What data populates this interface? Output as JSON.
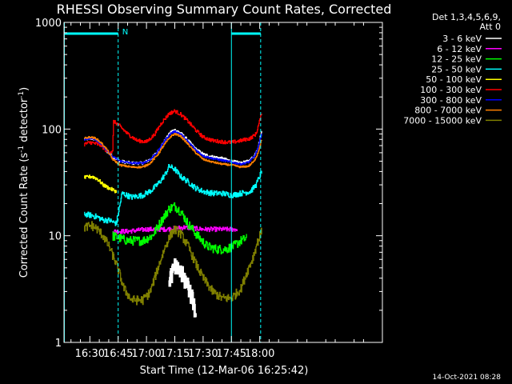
{
  "chart_data": {
    "type": "line",
    "title": "RHESSI Observing Summary Count Rates, Corrected",
    "xlabel": "Start Time (12-Mar-06 16:25:42)",
    "ylabel": "Corrected Count Rate (s",
    "ylabel_sup1": "-1",
    "ylabel_mid": " detector",
    "ylabel_sup2": "-1",
    "ylabel_end": ")",
    "y_scale": "log",
    "ylim": [
      1,
      1000
    ],
    "xlim_minutes": [
      16.3,
      185.0
    ],
    "x_ticks": [
      {
        "label": "16:30",
        "minute": 30
      },
      {
        "label": "16:45",
        "minute": 45
      },
      {
        "label": "17:00",
        "minute": 60
      },
      {
        "label": "17:15",
        "minute": 75
      },
      {
        "label": "17:30",
        "minute": 90
      },
      {
        "label": "17:45",
        "minute": 105
      },
      {
        "label": "18:00",
        "minute": 120
      }
    ],
    "y_ticks": [
      {
        "label": "1",
        "value": 1
      },
      {
        "label": "10",
        "value": 10
      },
      {
        "label": "100",
        "value": 100
      },
      {
        "label": "1000",
        "value": 1000
      }
    ],
    "legend_header": [
      "Det 1,3,4,5,6,9,",
      "Att 0"
    ],
    "legend_placement": "right",
    "series": [
      {
        "name": "3 - 6 keV",
        "color": "#ffffff",
        "noise": 0.03,
        "points": [
          [
            27,
            80
          ],
          [
            30,
            82
          ],
          [
            33,
            80
          ],
          [
            36,
            72
          ],
          [
            39,
            62
          ],
          [
            42,
            55
          ],
          [
            46,
            50
          ],
          [
            52,
            48
          ],
          [
            58,
            48
          ],
          [
            62,
            52
          ],
          [
            66,
            62
          ],
          [
            70,
            80
          ],
          [
            73,
            95
          ],
          [
            75,
            98
          ],
          [
            78,
            92
          ],
          [
            82,
            78
          ],
          [
            86,
            65
          ],
          [
            90,
            58
          ],
          [
            95,
            55
          ],
          [
            100,
            53
          ],
          [
            105,
            50
          ],
          [
            110,
            48
          ],
          [
            114,
            50
          ],
          [
            117,
            56
          ],
          [
            119,
            68
          ],
          [
            121,
            95
          ]
        ]
      },
      {
        "name": "6 - 12 keV",
        "color": "#ff00ff",
        "noise": 0.05,
        "points": [
          [
            42,
            11
          ],
          [
            50,
            11
          ],
          [
            60,
            11.5
          ],
          [
            70,
            11.5
          ],
          [
            80,
            12
          ],
          [
            90,
            11.5
          ],
          [
            100,
            11.5
          ],
          [
            108,
            11.5
          ]
        ]
      },
      {
        "name": "12 - 25 keV",
        "color": "#00ff00",
        "noise": 0.1,
        "points": [
          [
            42,
            10
          ],
          [
            50,
            9
          ],
          [
            58,
            9
          ],
          [
            63,
            10
          ],
          [
            68,
            14
          ],
          [
            72,
            18
          ],
          [
            75,
            19
          ],
          [
            78,
            17
          ],
          [
            82,
            13
          ],
          [
            87,
            10
          ],
          [
            92,
            8
          ],
          [
            97,
            7.5
          ],
          [
            102,
            7.5
          ],
          [
            106,
            8
          ],
          [
            110,
            9
          ],
          [
            113,
            9.5
          ]
        ]
      },
      {
        "name": "25 - 50 keV",
        "color": "#00ffff",
        "noise": 0.06,
        "points": [
          [
            27,
            16
          ],
          [
            31,
            15.5
          ],
          [
            34,
            15
          ],
          [
            37,
            14
          ],
          [
            40,
            14
          ],
          [
            44,
            13
          ],
          [
            47,
            25
          ],
          [
            52,
            23
          ],
          [
            58,
            24
          ],
          [
            63,
            27
          ],
          [
            67,
            32
          ],
          [
            70,
            38
          ],
          [
            72,
            45
          ],
          [
            75,
            42
          ],
          [
            78,
            36
          ],
          [
            82,
            32
          ],
          [
            86,
            28
          ],
          [
            90,
            26
          ],
          [
            95,
            25
          ],
          [
            100,
            25
          ],
          [
            105,
            24
          ],
          [
            110,
            25
          ],
          [
            115,
            26
          ],
          [
            118,
            30
          ],
          [
            121,
            40
          ]
        ]
      },
      {
        "name": "50 - 100 keV",
        "color": "#ffff00",
        "noise": 0.04,
        "points": [
          [
            27,
            35
          ],
          [
            31,
            36
          ],
          [
            34,
            34
          ],
          [
            37,
            30
          ],
          [
            40,
            28
          ],
          [
            44,
            26
          ]
        ]
      },
      {
        "name": "100 - 300 keV",
        "color": "#ff0000",
        "noise": 0.04,
        "points": [
          [
            27,
            72
          ],
          [
            30,
            75
          ],
          [
            33,
            73
          ],
          [
            36,
            70
          ],
          [
            39,
            62
          ],
          [
            42,
            61
          ],
          [
            42.5,
            118
          ],
          [
            45,
            110
          ],
          [
            50,
            90
          ],
          [
            55,
            78
          ],
          [
            60,
            76
          ],
          [
            64,
            88
          ],
          [
            68,
            115
          ],
          [
            72,
            140
          ],
          [
            75,
            148
          ],
          [
            78,
            138
          ],
          [
            82,
            118
          ],
          [
            86,
            98
          ],
          [
            90,
            84
          ],
          [
            95,
            78
          ],
          [
            100,
            76
          ],
          [
            105,
            75
          ],
          [
            110,
            78
          ],
          [
            115,
            82
          ],
          [
            118,
            90
          ],
          [
            121,
            140
          ]
        ]
      },
      {
        "name": "300 - 800 keV",
        "color": "#0000ff",
        "noise": 0.02,
        "points": [
          [
            27,
            80
          ],
          [
            30,
            82
          ],
          [
            33,
            80
          ],
          [
            36,
            72
          ],
          [
            39,
            62
          ],
          [
            42,
            55
          ],
          [
            46,
            50
          ],
          [
            52,
            48
          ],
          [
            58,
            48
          ],
          [
            62,
            52
          ],
          [
            66,
            62
          ],
          [
            70,
            80
          ],
          [
            73,
            92
          ],
          [
            75,
            95
          ],
          [
            78,
            90
          ],
          [
            82,
            76
          ],
          [
            86,
            64
          ],
          [
            90,
            56
          ],
          [
            95,
            53
          ],
          [
            100,
            51
          ],
          [
            105,
            49
          ],
          [
            110,
            47
          ],
          [
            114,
            49
          ],
          [
            117,
            55
          ],
          [
            119,
            66
          ],
          [
            121,
            92
          ]
        ]
      },
      {
        "name": "800 - 7000 keV",
        "color": "#ff8000",
        "noise": 0.02,
        "points": [
          [
            27,
            82
          ],
          [
            30,
            84
          ],
          [
            33,
            82
          ],
          [
            36,
            74
          ],
          [
            39,
            64
          ],
          [
            42,
            52
          ],
          [
            46,
            46
          ],
          [
            52,
            44
          ],
          [
            58,
            44
          ],
          [
            62,
            48
          ],
          [
            66,
            58
          ],
          [
            70,
            74
          ],
          [
            73,
            86
          ],
          [
            75,
            90
          ],
          [
            78,
            86
          ],
          [
            82,
            72
          ],
          [
            86,
            60
          ],
          [
            90,
            52
          ],
          [
            95,
            49
          ],
          [
            100,
            47
          ],
          [
            105,
            46
          ],
          [
            110,
            44
          ],
          [
            114,
            45
          ],
          [
            117,
            50
          ],
          [
            119,
            60
          ],
          [
            121,
            80
          ]
        ]
      },
      {
        "name": "7000 - 15000 keV",
        "color": "#808000",
        "noise": 0.1,
        "points": [
          [
            27,
            12
          ],
          [
            31,
            12.5
          ],
          [
            34,
            11.5
          ],
          [
            37,
            10
          ],
          [
            40,
            8
          ],
          [
            43,
            6
          ],
          [
            45,
            4.8
          ],
          [
            48,
            3.2
          ],
          [
            52,
            2.5
          ],
          [
            58,
            2.5
          ],
          [
            62,
            3
          ],
          [
            66,
            5
          ],
          [
            70,
            8
          ],
          [
            73,
            10.5
          ],
          [
            75,
            11.5
          ],
          [
            78,
            10.5
          ],
          [
            82,
            8
          ],
          [
            86,
            5.5
          ],
          [
            90,
            4
          ],
          [
            95,
            3
          ],
          [
            100,
            2.6
          ],
          [
            105,
            2.6
          ],
          [
            110,
            3.2
          ],
          [
            113,
            4.5
          ],
          [
            116,
            6
          ],
          [
            119,
            9
          ],
          [
            121,
            11
          ]
        ]
      },
      {
        "name": "",
        "color": "#ffffff",
        "noise": 0.2,
        "segment": true,
        "points": [
          [
            72,
            4
          ],
          [
            75,
            5
          ],
          [
            78,
            4.5
          ],
          [
            82,
            3.5
          ],
          [
            86,
            2
          ]
        ]
      }
    ],
    "legend_entries": [
      {
        "label": "3 - 6 keV",
        "color": "#ffffff"
      },
      {
        "label": "6 - 12 keV",
        "color": "#ff00ff"
      },
      {
        "label": "12 - 25 keV",
        "color": "#00ff00"
      },
      {
        "label": "25 - 50 keV",
        "color": "#00ffff"
      },
      {
        "label": "50 - 100 keV",
        "color": "#ffff00"
      },
      {
        "label": "100 - 300 keV",
        "color": "#ff0000"
      },
      {
        "label": "300 - 800 keV",
        "color": "#0000ff"
      },
      {
        "label": "800 - 7000 keV",
        "color": "#ff8000"
      },
      {
        "label": "7000 - 15000 keV",
        "color": "#808000"
      }
    ],
    "annotations": {
      "night_marker_label": "N",
      "night_intervals_minutes": [
        [
          16.3,
          45
        ],
        [
          105,
          120.5
        ]
      ],
      "saa_markers_minutes": [
        45,
        120.5
      ],
      "solid_markers_minutes": [
        16.5,
        105
      ]
    },
    "timestamp": "14-Oct-2021 08:28"
  }
}
